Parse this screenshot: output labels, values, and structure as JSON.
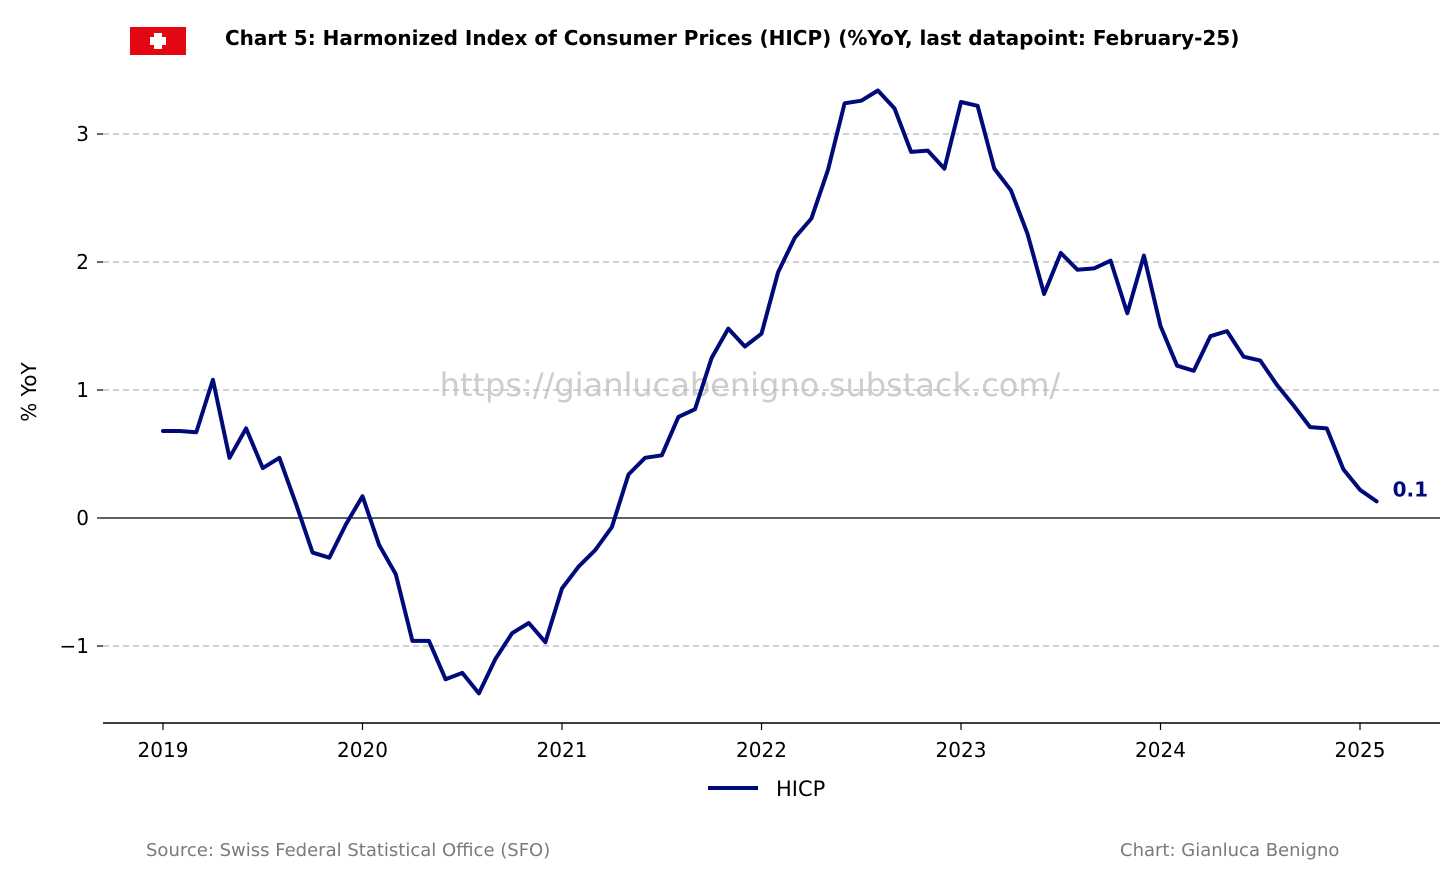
{
  "header": {
    "title": "Chart 5: Harmonized Index of Consumer Prices (HICP) (%YoY, last datapoint: February-25)",
    "flag_icon": "swiss-flag-icon"
  },
  "footer": {
    "source": "Source: Swiss Federal Statistical Office (SFO)",
    "credit": "Chart: Gianluca Benigno"
  },
  "watermark": "https://gianlucabenigno.substack.com/",
  "colors": {
    "series": "#000a78",
    "flag": "#e30613",
    "grid": "#b3b3b3",
    "zero_line": "#000000"
  },
  "chart_data": {
    "type": "line",
    "title": "Chart 5: Harmonized Index of Consumer Prices (HICP) (%YoY, last datapoint: February-25)",
    "xlabel": "",
    "ylabel": "% YoY",
    "x_ticks": [
      "2019",
      "2020",
      "2021",
      "2022",
      "2023",
      "2024",
      "2025"
    ],
    "y_ticks": [
      {
        "value": -1,
        "label": "−1"
      },
      {
        "value": 0,
        "label": "0"
      },
      {
        "value": 1,
        "label": "1"
      },
      {
        "value": 2,
        "label": "2"
      },
      {
        "value": 3,
        "label": "3"
      }
    ],
    "xlim": [
      "2018-09",
      "2025-06"
    ],
    "ylim": [
      -1.6,
      3.5
    ],
    "grid": "horizontal dashed",
    "legend": "bottom-center",
    "end_label": "0.1",
    "series": [
      {
        "name": "HICP",
        "x": [
          "2019-01",
          "2019-02",
          "2019-03",
          "2019-04",
          "2019-05",
          "2019-06",
          "2019-07",
          "2019-08",
          "2019-09",
          "2019-10",
          "2019-11",
          "2019-12",
          "2020-01",
          "2020-02",
          "2020-03",
          "2020-04",
          "2020-05",
          "2020-06",
          "2020-07",
          "2020-08",
          "2020-09",
          "2020-10",
          "2020-11",
          "2020-12",
          "2021-01",
          "2021-02",
          "2021-03",
          "2021-04",
          "2021-05",
          "2021-06",
          "2021-07",
          "2021-08",
          "2021-09",
          "2021-10",
          "2021-11",
          "2021-12",
          "2022-01",
          "2022-02",
          "2022-03",
          "2022-04",
          "2022-05",
          "2022-06",
          "2022-07",
          "2022-08",
          "2022-09",
          "2022-10",
          "2022-11",
          "2022-12",
          "2023-01",
          "2023-02",
          "2023-03",
          "2023-04",
          "2023-05",
          "2023-06",
          "2023-07",
          "2023-08",
          "2023-09",
          "2023-10",
          "2023-11",
          "2023-12",
          "2024-01",
          "2024-02",
          "2024-03",
          "2024-04",
          "2024-05",
          "2024-06",
          "2024-07",
          "2024-08",
          "2024-09",
          "2024-10",
          "2024-11",
          "2024-12",
          "2025-01",
          "2025-02"
        ],
        "values": [
          0.68,
          0.68,
          0.67,
          1.08,
          0.47,
          0.7,
          0.39,
          0.47,
          0.11,
          -0.27,
          -0.31,
          -0.05,
          0.17,
          -0.21,
          -0.44,
          -0.96,
          -0.96,
          -1.26,
          -1.21,
          -1.37,
          -1.1,
          -0.9,
          -0.82,
          -0.97,
          -0.55,
          -0.38,
          -0.25,
          -0.07,
          0.34,
          0.47,
          0.49,
          0.79,
          0.85,
          1.25,
          1.48,
          1.34,
          1.44,
          1.92,
          2.19,
          2.34,
          2.72,
          3.24,
          3.26,
          3.34,
          3.2,
          2.86,
          2.87,
          2.73,
          3.25,
          3.22,
          2.73,
          2.56,
          2.22,
          1.75,
          2.07,
          1.94,
          1.95,
          2.01,
          1.6,
          2.05,
          1.5,
          1.19,
          1.15,
          1.42,
          1.46,
          1.26,
          1.23,
          1.04,
          0.88,
          0.71,
          0.7,
          0.38,
          0.22,
          0.13
        ]
      }
    ]
  }
}
